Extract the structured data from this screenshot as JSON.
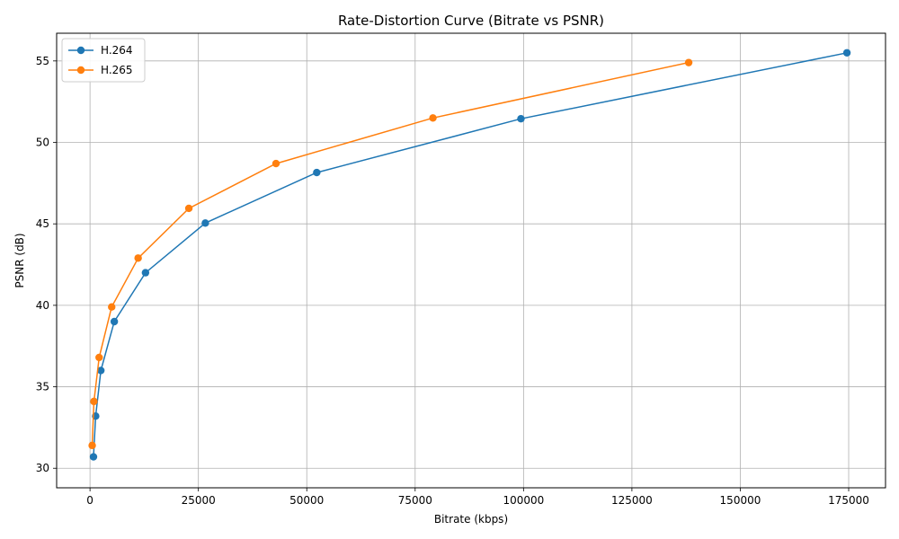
{
  "chart_data": {
    "type": "line",
    "title": "Rate-Distortion Curve (Bitrate vs PSNR)",
    "xlabel": "Bitrate (kbps)",
    "ylabel": "PSNR (dB)",
    "xlim": [
      -7700,
      183500
    ],
    "ylim": [
      28.8,
      56.7
    ],
    "xticks": [
      0,
      25000,
      50000,
      75000,
      100000,
      125000,
      150000,
      175000
    ],
    "xtick_labels": [
      "0",
      "25000",
      "50000",
      "75000",
      "100000",
      "125000",
      "150000",
      "175000"
    ],
    "yticks": [
      30,
      35,
      40,
      45,
      50,
      55
    ],
    "ytick_labels": [
      "30",
      "35",
      "40",
      "45",
      "50",
      "55"
    ],
    "grid": true,
    "legend_position": "top-left",
    "series": [
      {
        "name": "H.264",
        "color": "#1f77b4",
        "marker": "circle",
        "x": [
          800,
          1300,
          2500,
          5600,
          12800,
          26600,
          52300,
          99400,
          174600
        ],
        "y": [
          30.7,
          33.2,
          36.0,
          39.0,
          42.0,
          45.05,
          48.15,
          51.45,
          55.5
        ]
      },
      {
        "name": "H.265",
        "color": "#ff7f0e",
        "marker": "circle",
        "x": [
          500,
          900,
          2100,
          5000,
          11100,
          22800,
          42900,
          79100,
          138100
        ],
        "y": [
          31.4,
          34.1,
          36.8,
          39.9,
          42.9,
          45.95,
          48.7,
          51.5,
          54.9
        ]
      }
    ]
  }
}
